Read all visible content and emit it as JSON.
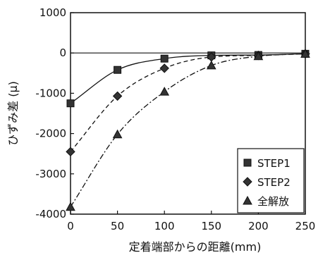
{
  "chart_data": {
    "type": "line",
    "xlabel": "定着端部からの距離(mm)",
    "ylabel": "ひずみ差 (μ)",
    "xlim": [
      0,
      250
    ],
    "ylim": [
      -4000,
      1000
    ],
    "xticks": [
      0,
      50,
      100,
      150,
      200,
      250
    ],
    "yticks": [
      1000,
      0,
      -1000,
      -2000,
      -3000,
      -4000
    ],
    "legend_position": "bottom-right",
    "grid": false,
    "series": [
      {
        "name": "STEP1",
        "marker": "square",
        "line_style": "solid",
        "x": [
          0,
          50,
          100,
          150,
          200,
          250
        ],
        "values": [
          -1250,
          -420,
          -140,
          -60,
          -50,
          -20
        ]
      },
      {
        "name": "STEP2",
        "marker": "diamond",
        "line_style": "dashed",
        "x": [
          0,
          50,
          100,
          150,
          200,
          250
        ],
        "values": [
          -2450,
          -1070,
          -380,
          -100,
          -60,
          -20
        ]
      },
      {
        "name": "全解放",
        "marker": "triangle",
        "line_style": "dashdot",
        "x": [
          0,
          50,
          100,
          150,
          200,
          250
        ],
        "values": [
          -3820,
          -2020,
          -960,
          -310,
          -80,
          -20
        ]
      }
    ]
  }
}
